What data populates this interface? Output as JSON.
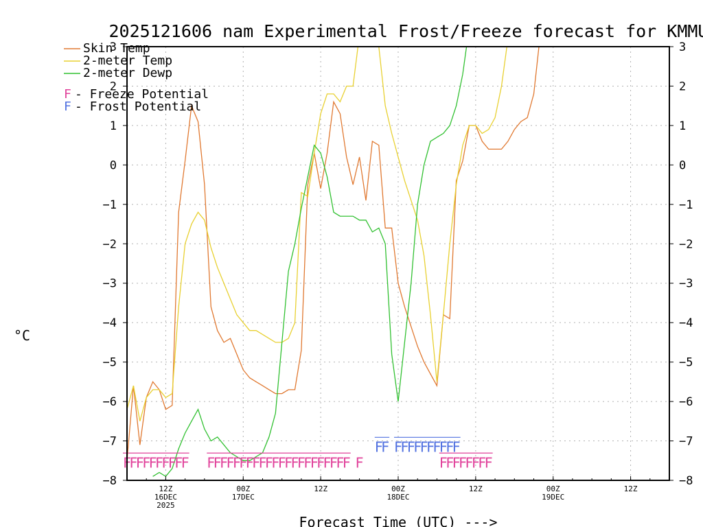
{
  "chart_data": {
    "type": "line",
    "title": "2025121606 nam Experimental Frost/Freeze forecast for KMMU",
    "xlabel": "Forecast Time (UTC) --->",
    "ylabel": "°C",
    "ylim": [
      -8,
      3
    ],
    "xlim": [
      6,
      90
    ],
    "y_ticks": [
      -8,
      -7,
      -6,
      -5,
      -4,
      -3,
      -2,
      -1,
      0,
      1,
      2,
      3
    ],
    "grid": true,
    "x_ticks": [
      {
        "x": 12,
        "lines": [
          "12Z",
          "16DEC",
          "2025"
        ]
      },
      {
        "x": 24,
        "lines": [
          "00Z",
          "17DEC"
        ]
      },
      {
        "x": 36,
        "lines": [
          "12Z"
        ]
      },
      {
        "x": 48,
        "lines": [
          "00Z",
          "18DEC"
        ]
      },
      {
        "x": 60,
        "lines": [
          "12Z"
        ]
      },
      {
        "x": 72,
        "lines": [
          "00Z",
          "19DEC"
        ]
      },
      {
        "x": 84,
        "lines": [
          "12Z"
        ]
      }
    ],
    "series": [
      {
        "name": "Skin Temp",
        "color": "#e07830",
        "x": [
          6,
          7,
          8,
          9,
          10,
          11,
          12,
          13,
          14,
          15,
          16,
          17,
          18,
          19,
          20,
          21,
          22,
          23,
          24,
          25,
          26,
          27,
          28,
          29,
          30,
          31,
          32,
          33,
          34,
          35,
          36,
          37,
          38,
          39,
          40,
          41,
          42,
          43,
          44,
          45,
          46,
          47,
          48,
          49,
          50,
          51,
          52,
          53,
          54,
          55,
          56,
          57,
          58,
          59,
          60,
          61,
          62,
          63,
          64,
          65,
          66,
          67,
          68,
          69,
          70,
          71,
          72,
          73,
          74,
          75,
          76
        ],
        "y": [
          -7.5,
          -5.6,
          -7.1,
          -5.9,
          -5.5,
          -5.7,
          -6.2,
          -6.1,
          -1.2,
          0.1,
          1.5,
          1.1,
          -0.5,
          -3.6,
          -4.2,
          -4.5,
          -4.4,
          -4.8,
          -5.2,
          -5.4,
          -5.5,
          -5.6,
          -5.7,
          -5.8,
          -5.8,
          -5.7,
          -5.7,
          -4.7,
          -0.5,
          0.3,
          -0.6,
          0.3,
          1.6,
          1.3,
          0.2,
          -0.5,
          0.2,
          -0.9,
          0.6,
          0.5,
          -1.6,
          -1.6,
          -3.0,
          -3.6,
          -4.1,
          -4.6,
          -5.0,
          -5.3,
          -5.6,
          -3.8,
          -3.9,
          -0.4,
          0.1,
          1.0,
          1.0,
          0.6,
          0.4,
          0.4,
          0.4,
          0.6,
          0.9,
          1.1,
          1.2,
          1.8,
          3.3,
          3.5,
          3.5,
          3.5,
          3.5,
          3.5,
          3.5
        ]
      },
      {
        "name": "2-meter Temp",
        "color": "#e8d030",
        "x": [
          6,
          7,
          8,
          9,
          10,
          11,
          12,
          13,
          14,
          15,
          16,
          17,
          18,
          19,
          20,
          21,
          22,
          23,
          24,
          25,
          26,
          27,
          28,
          29,
          30,
          31,
          32,
          33,
          34,
          35,
          36,
          37,
          38,
          39,
          40,
          41,
          42,
          43,
          44,
          45,
          46,
          47,
          48,
          49,
          50,
          51,
          52,
          53,
          54,
          55,
          56,
          57,
          58,
          59,
          60,
          61,
          62,
          63,
          64,
          65,
          66,
          67,
          68
        ],
        "y": [
          -6.2,
          -5.6,
          -6.5,
          -5.9,
          -5.7,
          -5.7,
          -5.9,
          -5.8,
          -3.6,
          -2.0,
          -1.5,
          -1.2,
          -1.4,
          -2.1,
          -2.6,
          -3.0,
          -3.4,
          -3.8,
          -4.0,
          -4.2,
          -4.2,
          -4.3,
          -4.4,
          -4.5,
          -4.5,
          -4.4,
          -4.0,
          -0.7,
          -0.8,
          0.3,
          1.3,
          1.8,
          1.8,
          1.6,
          2.0,
          2.0,
          3.3,
          3.5,
          3.5,
          3.0,
          1.5,
          0.8,
          0.2,
          -0.4,
          -0.9,
          -1.4,
          -2.3,
          -3.8,
          -5.5,
          -3.8,
          -2.0,
          -0.5,
          0.5,
          1.0,
          1.0,
          0.8,
          0.9,
          1.2,
          2.0,
          3.2,
          3.5,
          3.5,
          3.5
        ]
      },
      {
        "name": "2-meter Dewp",
        "color": "#30c030",
        "x": [
          10,
          11,
          12,
          13,
          14,
          15,
          16,
          17,
          18,
          19,
          20,
          21,
          22,
          23,
          24,
          25,
          26,
          27,
          28,
          29,
          30,
          31,
          32,
          33,
          34,
          35,
          36,
          37,
          38,
          39,
          40,
          41,
          42,
          43,
          44,
          45,
          46,
          47,
          48,
          49,
          50,
          51,
          52,
          53,
          54,
          55,
          56,
          57,
          58,
          59,
          60,
          61,
          62,
          63,
          64
        ],
        "y": [
          -7.9,
          -7.8,
          -7.9,
          -7.7,
          -7.2,
          -6.8,
          -6.5,
          -6.2,
          -6.7,
          -7.0,
          -6.9,
          -7.1,
          -7.3,
          -7.4,
          -7.5,
          -7.5,
          -7.4,
          -7.3,
          -6.9,
          -6.3,
          -4.5,
          -2.7,
          -2.0,
          -1.1,
          -0.3,
          0.5,
          0.3,
          -0.3,
          -1.2,
          -1.3,
          -1.3,
          -1.3,
          -1.4,
          -1.4,
          -1.7,
          -1.6,
          -2.0,
          -4.8,
          -6.0,
          -4.5,
          -3.0,
          -1.0,
          0.0,
          0.6,
          0.7,
          0.8,
          1.0,
          1.5,
          2.3,
          3.5,
          3.5,
          3.5,
          3.5,
          3.5,
          3.5
        ]
      }
    ],
    "legend": {
      "position": "top-left",
      "entries": [
        {
          "label": "Skin Temp",
          "color": "#e07830"
        },
        {
          "label": "2-meter Temp",
          "color": "#e8d030"
        },
        {
          "label": "2-meter Dewp",
          "color": "#30c030"
        },
        {
          "label": "F - Freeze Potential",
          "color": "#e0409a"
        },
        {
          "label": "F - Frost Potential",
          "color": "#5070e0"
        }
      ]
    },
    "freeze_marks": {
      "letter": "F",
      "color": "#e0409a",
      "y": -7.5,
      "x": [
        6,
        7,
        8,
        9,
        10,
        11,
        12,
        13,
        14,
        15,
        19,
        20,
        21,
        22,
        23,
        24,
        25,
        26,
        27,
        28,
        29,
        30,
        31,
        32,
        33,
        34,
        35,
        36,
        37,
        38,
        39,
        40,
        42,
        55,
        56,
        57,
        58,
        59,
        60,
        61,
        62
      ]
    },
    "frost_marks": {
      "letter": "F",
      "color": "#5070e0",
      "y": -7.1,
      "x": [
        45,
        46,
        48,
        49,
        50,
        51,
        52,
        53,
        54,
        55,
        56,
        57
      ]
    }
  }
}
